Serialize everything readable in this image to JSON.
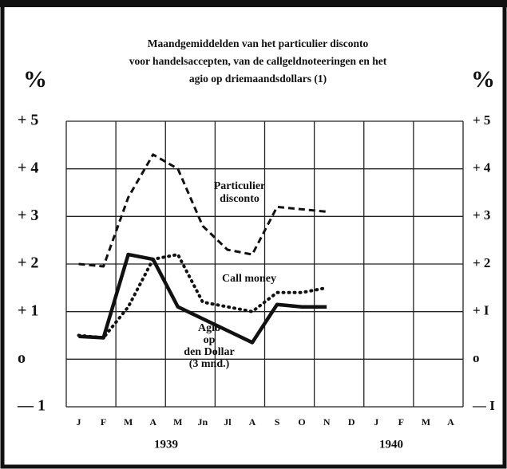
{
  "chart_data": {
    "type": "line",
    "title": [
      "Maandgemiddelden van het particulier disconto",
      "voor handelsaccepten, van de callgeldnoteeringen en het",
      "agio op driemaandsdollars (1)"
    ],
    "y_unit": "%",
    "y2_unit": "%",
    "categories": [
      "J",
      "F",
      "M",
      "A",
      "M",
      "Jn",
      "Jl",
      "A",
      "S",
      "O",
      "N",
      "D",
      "J",
      "F",
      "M",
      "A"
    ],
    "years": [
      "1939",
      "1940"
    ],
    "ylim": [
      -1,
      5
    ],
    "yticks": [
      {
        "value": 5,
        "label": "+ 5"
      },
      {
        "value": 4,
        "label": "+ 4"
      },
      {
        "value": 3,
        "label": "+ 3"
      },
      {
        "value": 2,
        "label": "+ 2"
      },
      {
        "value": 1,
        "label": "+ 1"
      },
      {
        "value": 0,
        "label": "o"
      },
      {
        "value": -1,
        "label": "— 1"
      }
    ],
    "y2lim": [
      -1,
      5
    ],
    "y2ticks": [
      {
        "value": 5,
        "label": "+ 5"
      },
      {
        "value": 4,
        "label": "+ 4"
      },
      {
        "value": 3,
        "label": "+ 3"
      },
      {
        "value": 2,
        "label": "+ 2"
      },
      {
        "value": 1,
        "label": "+ I"
      },
      {
        "value": 0,
        "label": "o"
      },
      {
        "value": -1,
        "label": "— I"
      }
    ],
    "grid": true,
    "series": [
      {
        "label_lines": [
          "Particulier",
          "disconto"
        ],
        "style": "dashed",
        "color": "#111111",
        "values": [
          2.0,
          1.95,
          3.4,
          4.3,
          4.0,
          2.8,
          2.3,
          2.2,
          3.2,
          3.15,
          3.1,
          null,
          null,
          null,
          null,
          null
        ]
      },
      {
        "label_lines": [
          "Call money"
        ],
        "style": "dotted",
        "color": "#111111",
        "values": [
          0.5,
          0.45,
          1.1,
          2.1,
          2.2,
          1.2,
          1.1,
          1.0,
          1.4,
          1.4,
          1.5,
          null,
          null,
          null,
          null,
          null
        ]
      },
      {
        "label_lines": [
          "Agio",
          "op",
          "den Dollar",
          "(3 mnd.)"
        ],
        "style": "solid",
        "color": "#111111",
        "values": [
          0.48,
          0.45,
          2.2,
          2.1,
          1.1,
          0.85,
          0.6,
          0.35,
          1.15,
          1.1,
          1.1,
          null,
          null,
          null,
          null,
          null
        ]
      }
    ]
  }
}
